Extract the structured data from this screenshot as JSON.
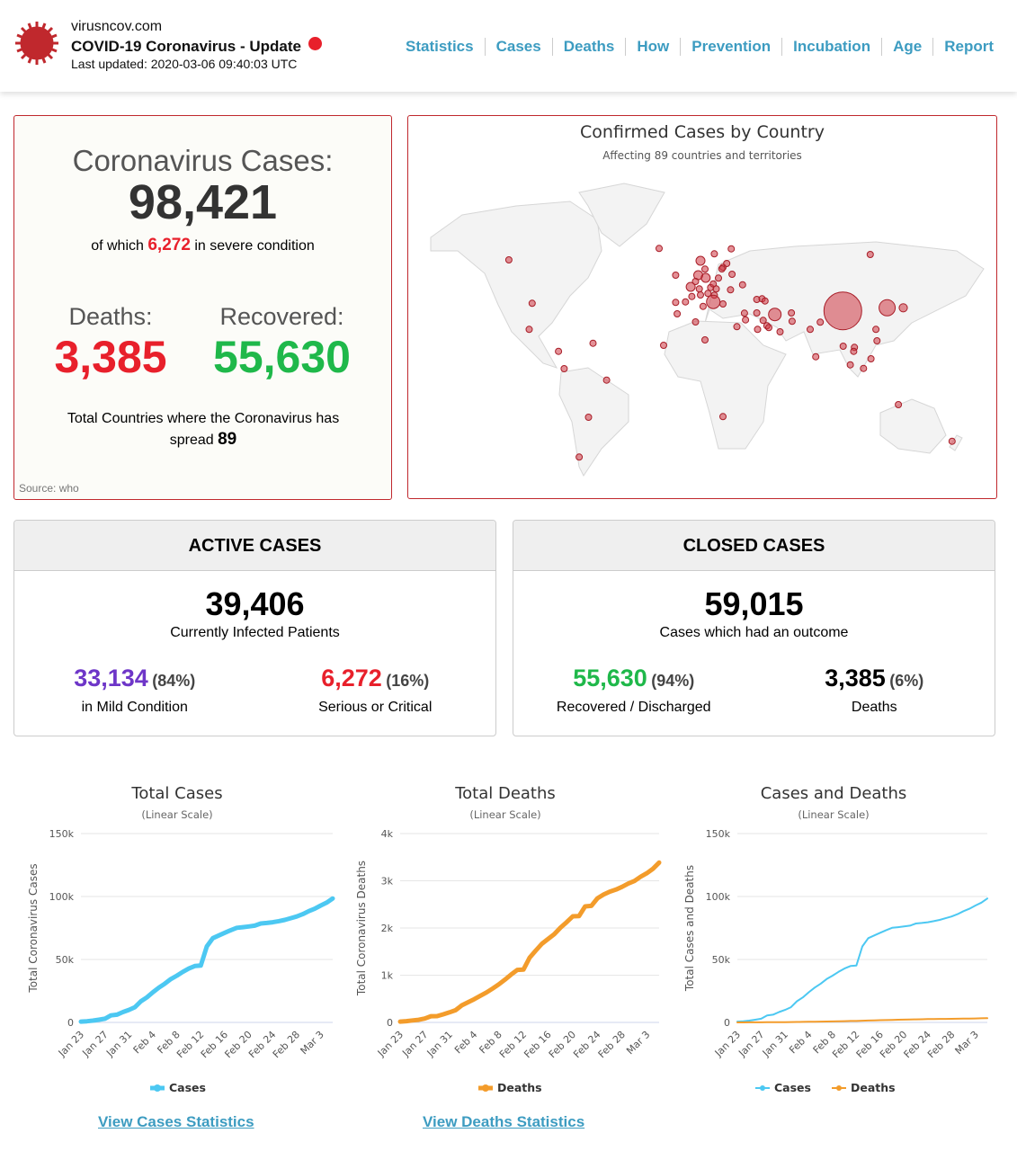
{
  "header": {
    "site": "virusncov.com",
    "title": "COVID-19 Coronavirus - Update",
    "last_updated": "Last updated: 2020-03-06 09:40:03 UTC",
    "nav": [
      "Statistics",
      "Cases",
      "Deaths",
      "How",
      "Prevention",
      "Incubation",
      "Age",
      "Report"
    ]
  },
  "summary": {
    "cases_label": "Coronavirus Cases:",
    "cases": "98,421",
    "severe_pre": "of which",
    "severe": "6,272",
    "severe_post": "in severe condition",
    "deaths_label": "Deaths:",
    "deaths": "3,385",
    "recovered_label": "Recovered:",
    "recovered": "55,630",
    "countries_text": "Total Countries where the Coronavirus has spread",
    "countries": "89",
    "source": "Source: who"
  },
  "map": {
    "title": "Confirmed Cases by Country",
    "subtitle": "Affecting 89 countries and territories"
  },
  "active": {
    "title": "ACTIVE CASES",
    "total": "39,406",
    "total_label": "Currently Infected Patients",
    "mild": "33,134",
    "mild_pct": "(84%)",
    "mild_label": "in Mild Condition",
    "serious": "6,272",
    "serious_pct": "(16%)",
    "serious_label": "Serious or Critical"
  },
  "closed": {
    "title": "CLOSED CASES",
    "total": "59,015",
    "total_label": "Cases which had an outcome",
    "recovered": "55,630",
    "recovered_pct": "(94%)",
    "recovered_label": "Recovered / Discharged",
    "deaths": "3,385",
    "deaths_pct": "(6%)",
    "deaths_label": "Deaths"
  },
  "colors": {
    "cases": "#4cc8f2",
    "deaths": "#f39c2b",
    "accent": "#c0282d",
    "link": "#3d9cc1"
  },
  "links": {
    "cases": "View Cases Statistics",
    "deaths": "View Deaths Statistics"
  },
  "chart_data": [
    {
      "type": "line",
      "title": "Total Cases",
      "subtitle": "(Linear Scale)",
      "ylabel": "Total Coronavirus Cases",
      "ylim": [
        0,
        150000
      ],
      "yticks": [
        "0",
        "50k",
        "100k",
        "150k"
      ],
      "ytick_values": [
        0,
        50000,
        100000,
        150000
      ],
      "xticks": [
        "Jan 23",
        "Jan 27",
        "Jan 31",
        "Feb 4",
        "Feb 8",
        "Feb 12",
        "Feb 16",
        "Feb 20",
        "Feb 24",
        "Feb 28",
        "Mar 3"
      ],
      "series": [
        {
          "name": "Cases",
          "color": "#4cc8f2",
          "values": [
            653,
            941,
            1434,
            2118,
            2927,
            5578,
            6165,
            8235,
            9925,
            12038,
            16787,
            19887,
            23898,
            27643,
            30802,
            34395,
            37129,
            40160,
            42768,
            44810,
            45228,
            60380,
            66907,
            69052,
            71235,
            73270,
            75152,
            75652,
            76212,
            76843,
            78599,
            78985,
            79570,
            80415,
            81397,
            82756,
            84124,
            86013,
            88371,
            90309,
            92844,
            95124,
            98421
          ]
        }
      ]
    },
    {
      "type": "line",
      "title": "Total Deaths",
      "subtitle": "(Linear Scale)",
      "ylabel": "Total Coronavirus Deaths",
      "ylim": [
        0,
        4000
      ],
      "yticks": [
        "0",
        "1k",
        "2k",
        "3k",
        "4k"
      ],
      "ytick_values": [
        0,
        1000,
        2000,
        3000,
        4000
      ],
      "xticks": [
        "Jan 23",
        "Jan 27",
        "Jan 31",
        "Feb 4",
        "Feb 8",
        "Feb 12",
        "Feb 16",
        "Feb 20",
        "Feb 24",
        "Feb 28",
        "Mar 3"
      ],
      "series": [
        {
          "name": "Deaths",
          "color": "#f39c2b",
          "values": [
            18,
            26,
            42,
            56,
            82,
            131,
            133,
            171,
            213,
            259,
            362,
            426,
            492,
            564,
            634,
            719,
            806,
            906,
            1013,
            1113,
            1118,
            1371,
            1523,
            1666,
            1770,
            1868,
            2007,
            2122,
            2247,
            2251,
            2458,
            2469,
            2629,
            2708,
            2770,
            2814,
            2872,
            2941,
            2996,
            3085,
            3160,
            3254,
            3385
          ]
        }
      ]
    },
    {
      "type": "line",
      "title": "Cases and Deaths",
      "subtitle": "(Linear Scale)",
      "ylabel": "Total Cases and Deaths",
      "ylim": [
        0,
        150000
      ],
      "yticks": [
        "0",
        "50k",
        "100k",
        "150k"
      ],
      "ytick_values": [
        0,
        50000,
        100000,
        150000
      ],
      "xticks": [
        "Jan 23",
        "Jan 27",
        "Jan 31",
        "Feb 4",
        "Feb 8",
        "Feb 12",
        "Feb 16",
        "Feb 20",
        "Feb 24",
        "Feb 28",
        "Mar 3"
      ],
      "series": [
        {
          "name": "Cases",
          "color": "#4cc8f2",
          "values": [
            653,
            941,
            1434,
            2118,
            2927,
            5578,
            6165,
            8235,
            9925,
            12038,
            16787,
            19887,
            23898,
            27643,
            30802,
            34395,
            37129,
            40160,
            42768,
            44810,
            45228,
            60380,
            66907,
            69052,
            71235,
            73270,
            75152,
            75652,
            76212,
            76843,
            78599,
            78985,
            79570,
            80415,
            81397,
            82756,
            84124,
            86013,
            88371,
            90309,
            92844,
            95124,
            98421
          ]
        },
        {
          "name": "Deaths",
          "color": "#f39c2b",
          "values": [
            18,
            26,
            42,
            56,
            82,
            131,
            133,
            171,
            213,
            259,
            362,
            426,
            492,
            564,
            634,
            719,
            806,
            906,
            1013,
            1113,
            1118,
            1371,
            1523,
            1666,
            1770,
            1868,
            2007,
            2122,
            2247,
            2251,
            2458,
            2469,
            2629,
            2708,
            2770,
            2814,
            2872,
            2941,
            2996,
            3085,
            3160,
            3254,
            3385
          ]
        }
      ]
    }
  ]
}
